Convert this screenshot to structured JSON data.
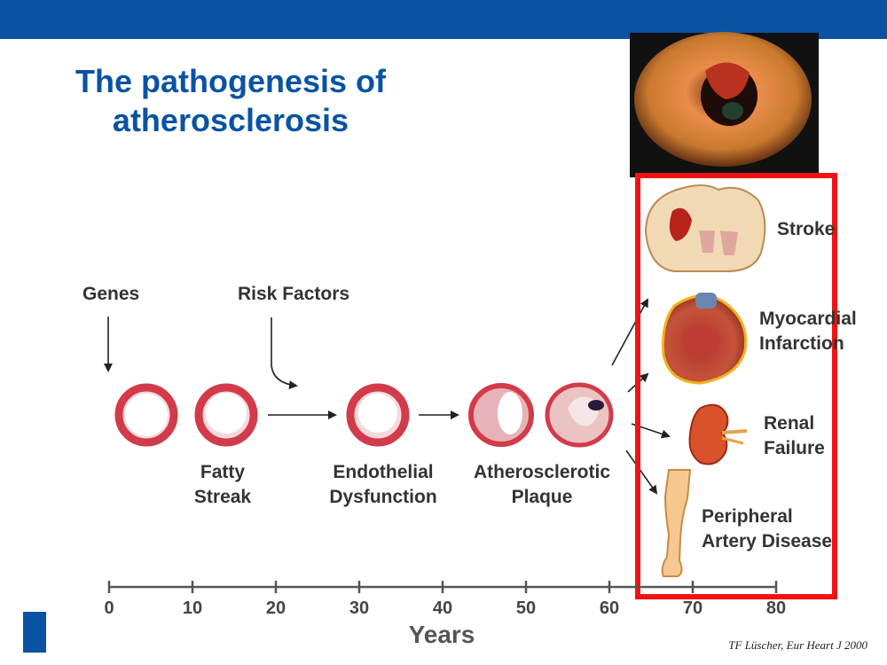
{
  "slide": {
    "title_line1": "The pathogenesis of",
    "title_line2": "atherosclerosis",
    "citation": "TF Lüscher, Eur Heart J 2000",
    "colors": {
      "header_bar": "#0a53a3",
      "title": "#0a53a3",
      "highlight_box": "#f01313",
      "artery": "#d13b4a"
    }
  },
  "inputs": {
    "genes": "Genes",
    "risk_factors": "Risk Factors"
  },
  "stages": {
    "fatty_line1": "Fatty",
    "fatty_line2": "Streak",
    "endo_line1": "Endothelial",
    "endo_line2": "Dysfunction",
    "athero_line1": "Atherosclerotic",
    "athero_line2": "Plaque"
  },
  "outcomes": {
    "stroke": "Stroke",
    "mi_line1": "Myocardial",
    "mi_line2": "Infarction",
    "renal_line1": "Renal",
    "renal_line2": "Failure",
    "pad_line1": "Peripheral",
    "pad_line2": "Artery Disease"
  },
  "axis": {
    "label": "Years",
    "ticks": [
      "0",
      "10",
      "20",
      "30",
      "40",
      "50",
      "60",
      "70",
      "80"
    ]
  }
}
